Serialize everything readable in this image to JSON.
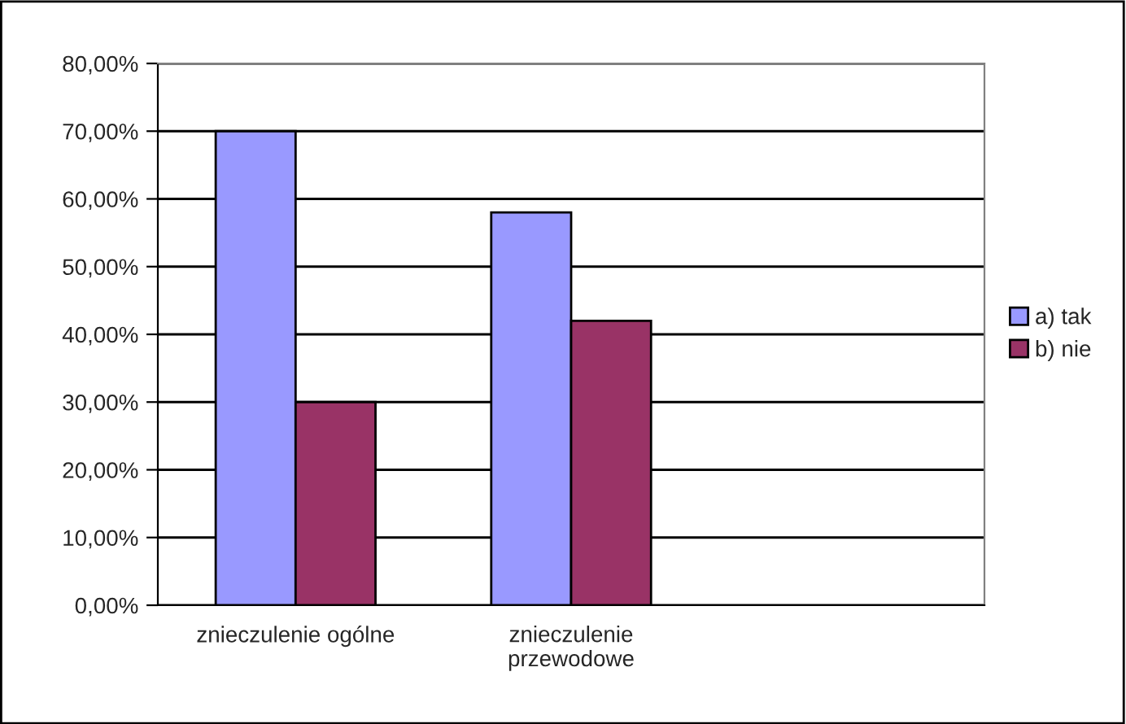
{
  "chart_data": {
    "type": "bar",
    "categories": [
      "znieczulenie ogólne",
      "znieczulenie\nprzewodowe",
      null
    ],
    "series": [
      {
        "name": "a) tak",
        "color": "#9999ff",
        "values": [
          70,
          58,
          null
        ]
      },
      {
        "name": "b) nie",
        "color": "#993366",
        "values": [
          30,
          42,
          null
        ]
      }
    ],
    "ylim": [
      0,
      80
    ],
    "yticks": [
      {
        "value": 0,
        "label": "0,00%"
      },
      {
        "value": 10,
        "label": "10,00%"
      },
      {
        "value": 20,
        "label": "20,00%"
      },
      {
        "value": 30,
        "label": "30,00%"
      },
      {
        "value": 40,
        "label": "40,00%"
      },
      {
        "value": 50,
        "label": "50,00%"
      },
      {
        "value": 60,
        "label": "60,00%"
      },
      {
        "value": 70,
        "label": "70,00%"
      },
      {
        "value": 80,
        "label": "80,00%"
      }
    ],
    "grid": "y",
    "legend": "right"
  }
}
